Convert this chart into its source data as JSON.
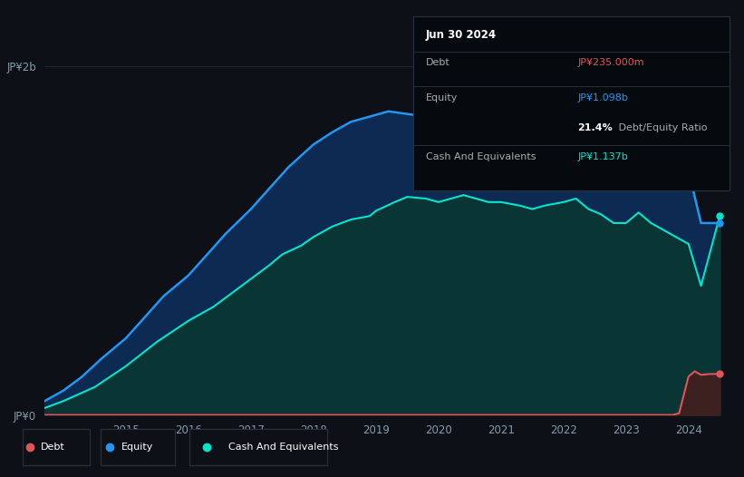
{
  "background_color": "#0d1117",
  "plot_bg_color": "#0d1117",
  "ylabel_top": "JP¥2b",
  "ylabel_bottom": "JP¥0",
  "x_labels": [
    "2015",
    "2016",
    "2017",
    "2018",
    "2019",
    "2020",
    "2021",
    "2022",
    "2023",
    "2024"
  ],
  "equity_color": "#2196f3",
  "equity_fill_color": "#0d2b52",
  "cash_color": "#00e5cc",
  "cash_fill_color": "#0a3535",
  "debt_color": "#e05555",
  "debt_fill_color": "#3d2020",
  "grid_color": "#1e2535",
  "tooltip_bg": "#050a0f",
  "tooltip_border": "#2a3040",
  "tooltip_title": "Jun 30 2024",
  "tooltip_debt_label": "Debt",
  "tooltip_debt_value": "JP¥235.000m",
  "tooltip_equity_label": "Equity",
  "tooltip_equity_value": "JP¥1.098b",
  "tooltip_ratio_bold": "21.4%",
  "tooltip_ratio_text": " Debt/Equity Ratio",
  "tooltip_cash_label": "Cash And Equivalents",
  "tooltip_cash_value": "JP¥1.137b",
  "equity_x": [
    2013.7,
    2014.0,
    2014.3,
    2014.6,
    2015.0,
    2015.3,
    2015.6,
    2016.0,
    2016.3,
    2016.6,
    2017.0,
    2017.3,
    2017.6,
    2018.0,
    2018.3,
    2018.6,
    2019.0,
    2019.2,
    2019.4,
    2019.6,
    2019.8,
    2020.0,
    2020.3,
    2020.5,
    2020.8,
    2021.0,
    2021.2,
    2021.4,
    2021.6,
    2022.0,
    2022.3,
    2022.6,
    2023.0,
    2023.3,
    2023.6,
    2023.75,
    2024.0,
    2024.2,
    2024.5
  ],
  "equity_y": [
    0.08,
    0.14,
    0.22,
    0.32,
    0.44,
    0.56,
    0.68,
    0.8,
    0.92,
    1.04,
    1.18,
    1.3,
    1.42,
    1.55,
    1.62,
    1.68,
    1.72,
    1.74,
    1.73,
    1.72,
    1.7,
    1.69,
    1.7,
    1.72,
    1.74,
    1.76,
    1.78,
    1.76,
    1.75,
    1.8,
    1.82,
    1.82,
    1.83,
    1.84,
    1.85,
    1.85,
    1.4,
    1.1,
    1.1
  ],
  "cash_x": [
    2013.7,
    2014.0,
    2014.5,
    2015.0,
    2015.5,
    2016.0,
    2016.4,
    2016.7,
    2017.0,
    2017.3,
    2017.5,
    2017.8,
    2018.0,
    2018.3,
    2018.6,
    2018.9,
    2019.0,
    2019.3,
    2019.5,
    2019.8,
    2020.0,
    2020.2,
    2020.4,
    2020.6,
    2020.8,
    2021.0,
    2021.3,
    2021.5,
    2021.7,
    2022.0,
    2022.2,
    2022.4,
    2022.6,
    2022.8,
    2023.0,
    2023.2,
    2023.4,
    2023.6,
    2023.75,
    2024.0,
    2024.2,
    2024.5
  ],
  "cash_y": [
    0.04,
    0.08,
    0.16,
    0.28,
    0.42,
    0.54,
    0.62,
    0.7,
    0.78,
    0.86,
    0.92,
    0.97,
    1.02,
    1.08,
    1.12,
    1.14,
    1.17,
    1.22,
    1.25,
    1.24,
    1.22,
    1.24,
    1.26,
    1.24,
    1.22,
    1.22,
    1.2,
    1.18,
    1.2,
    1.22,
    1.24,
    1.18,
    1.15,
    1.1,
    1.1,
    1.16,
    1.1,
    1.06,
    1.03,
    0.98,
    0.74,
    1.14
  ],
  "debt_x": [
    2013.7,
    2022.0,
    2023.0,
    2023.6,
    2023.75,
    2023.85,
    2024.0,
    2024.1,
    2024.2,
    2024.35,
    2024.5
  ],
  "debt_y": [
    0.0,
    0.0,
    0.0,
    0.0,
    0.0,
    0.01,
    0.22,
    0.25,
    0.23,
    0.235,
    0.235
  ],
  "ylim": [
    0,
    2.05
  ],
  "xlim": [
    2013.7,
    2024.65
  ],
  "x_tick_positions": [
    2015,
    2016,
    2017,
    2018,
    2019,
    2020,
    2021,
    2022,
    2023,
    2024
  ]
}
